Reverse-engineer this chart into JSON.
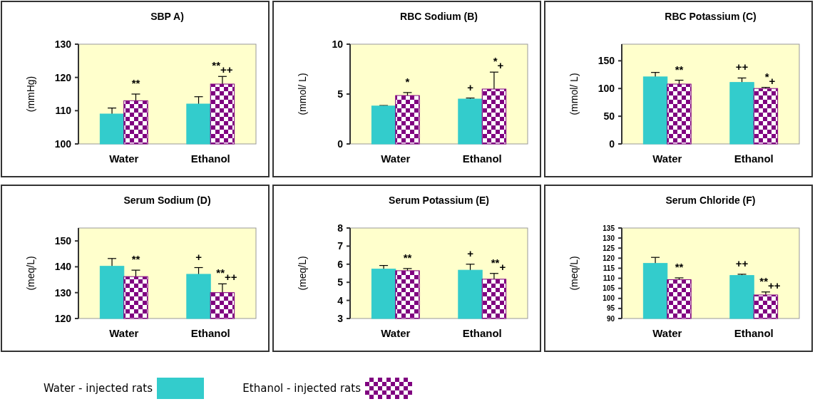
{
  "chart_data": [
    {
      "type": "bar",
      "title": "SBP A)",
      "ylabel": "(mmHg)",
      "categories": [
        "Water",
        "Ethanol"
      ],
      "ylim": [
        100,
        130
      ],
      "yticks": [
        100,
        110,
        120,
        130
      ],
      "legend": "bottom",
      "series": [
        {
          "name": "Water - injected rats",
          "color": "#33cccc",
          "values": [
            109,
            112
          ],
          "errors": [
            1.8,
            2.2
          ]
        },
        {
          "name": "Ethanol - injected rats",
          "color": "#800080",
          "values": [
            113,
            118
          ],
          "errors": [
            2,
            2.3
          ]
        }
      ],
      "annotations": [
        "**",
        "**$_{++}$"
      ]
    },
    {
      "type": "bar",
      "title": "RBC Sodium (B)",
      "ylabel": "(mmol/ L)",
      "categories": [
        "Water",
        "Ethanol"
      ],
      "ylim": [
        0,
        10
      ],
      "yticks": [
        0,
        5,
        10
      ],
      "series": [
        {
          "color": "#33cccc",
          "values": [
            3.8,
            4.5
          ],
          "errors": [
            0.05,
            0.1
          ]
        },
        {
          "color": "#800080",
          "values": [
            4.85,
            5.5
          ],
          "errors": [
            0.3,
            1.7
          ]
        }
      ],
      "annotations": [
        "*",
        "+",
        "*$_{+}$"
      ]
    },
    {
      "type": "bar",
      "title": "RBC Potassium (C)",
      "ylabel": "(mmol/ L)",
      "categories": [
        "Water",
        "Ethanol"
      ],
      "ylim": [
        0,
        180
      ],
      "yticks": [
        0,
        50,
        100,
        150
      ],
      "series": [
        {
          "color": "#33cccc",
          "values": [
            121,
            111
          ],
          "errors": [
            8,
            8
          ]
        },
        {
          "color": "#800080",
          "values": [
            108,
            100
          ],
          "errors": [
            7,
            2
          ]
        }
      ],
      "annotations": [
        "**",
        "++",
        "*$_{+}$"
      ]
    },
    {
      "type": "bar",
      "title": "Serum Sodium (D)",
      "ylabel": "(meq/L)",
      "categories": [
        "Water",
        "Ethanol"
      ],
      "ylim": [
        120,
        155
      ],
      "yticks": [
        120,
        130,
        140,
        150
      ],
      "series": [
        {
          "color": "#33cccc",
          "values": [
            140.2,
            137.1
          ],
          "errors": [
            3,
            2.6
          ]
        },
        {
          "color": "#800080",
          "values": [
            136.2,
            130
          ],
          "errors": [
            2.5,
            3.4
          ]
        }
      ],
      "annotations": [
        "**",
        "+",
        "**$_{++}$"
      ]
    },
    {
      "type": "bar",
      "title": "Serum Potassium (E)",
      "ylabel": "(meq/L)",
      "categories": [
        "Water",
        "Ethanol"
      ],
      "ylim": [
        3,
        8
      ],
      "yticks": [
        3,
        4,
        5,
        6,
        7,
        8
      ],
      "series": [
        {
          "color": "#33cccc",
          "values": [
            5.73,
            5.67
          ],
          "errors": [
            0.2,
            0.33
          ]
        },
        {
          "color": "#800080",
          "values": [
            5.64,
            5.17
          ],
          "errors": [
            0.12,
            0.32
          ]
        }
      ],
      "annotations": [
        "**",
        "+",
        "**$_{+}$"
      ]
    },
    {
      "type": "bar",
      "title": "Serum Chloride (F)",
      "ylabel": "(meq/L)",
      "categories": [
        "Water",
        "Ethanol"
      ],
      "ylim": [
        90,
        135
      ],
      "yticks": [
        90,
        95,
        100,
        105,
        110,
        115,
        120,
        125,
        130,
        135
      ],
      "series": [
        {
          "color": "#33cccc",
          "values": [
            117.4,
            111.4
          ],
          "errors": [
            3,
            0.6
          ]
        },
        {
          "color": "#800080",
          "values": [
            109.3,
            101.7
          ],
          "errors": [
            0.9,
            1.5
          ]
        }
      ],
      "annotations": [
        "**",
        "++",
        "**$_{++}$"
      ]
    }
  ]
}
